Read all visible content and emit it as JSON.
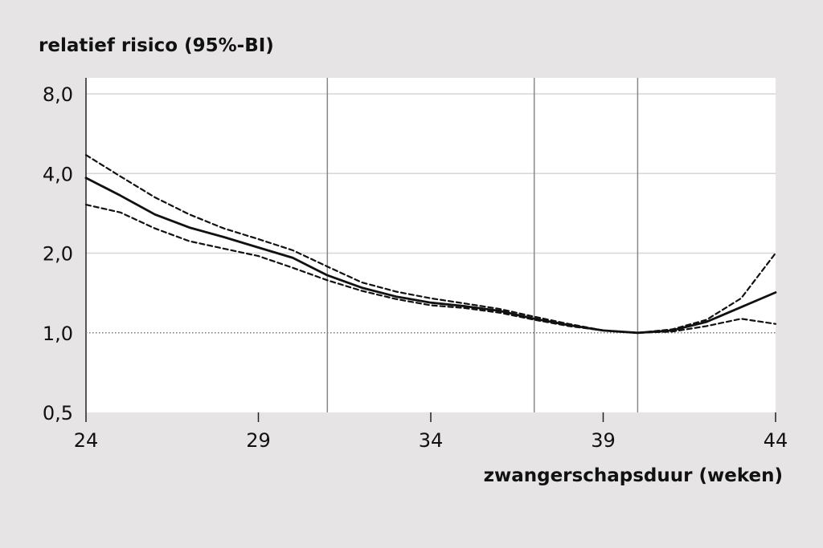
{
  "chart_data": {
    "type": "line",
    "ylabel": "relatief risico (95%-BI)",
    "xlabel": "zwangerschapsduur (weken)",
    "y_scale": "log2",
    "ylim": [
      0.5,
      9.2
    ],
    "xlim": [
      24,
      44
    ],
    "x_ticks": [
      24,
      29,
      34,
      39,
      44
    ],
    "y_ticks": [
      {
        "value": 0.5,
        "label": "0,5"
      },
      {
        "value": 1.0,
        "label": "1,0"
      },
      {
        "value": 2.0,
        "label": "2,0"
      },
      {
        "value": 4.0,
        "label": "4,0"
      },
      {
        "value": 8.0,
        "label": "8,0"
      }
    ],
    "reference_line": {
      "y": 1.0,
      "style": "dotted"
    },
    "vertical_lines_x": [
      31,
      37,
      40
    ],
    "series": [
      {
        "role": "estimate",
        "style": "solid",
        "x": [
          24,
          25,
          26,
          27,
          28,
          29,
          30,
          31,
          32,
          33,
          34,
          35,
          36,
          37,
          38,
          39,
          40,
          41,
          42,
          43,
          44
        ],
        "y": [
          3.85,
          3.3,
          2.8,
          2.5,
          2.3,
          2.1,
          1.92,
          1.65,
          1.48,
          1.37,
          1.3,
          1.26,
          1.21,
          1.13,
          1.07,
          1.02,
          1.0,
          1.02,
          1.1,
          1.25,
          1.42
        ]
      },
      {
        "role": "upper_ci",
        "style": "dashed",
        "x": [
          24,
          25,
          26,
          27,
          28,
          29,
          30,
          31,
          32,
          33,
          34,
          35,
          36,
          37,
          38,
          39,
          40,
          41,
          42,
          43,
          44
        ],
        "y": [
          4.7,
          3.9,
          3.25,
          2.8,
          2.48,
          2.26,
          2.05,
          1.78,
          1.55,
          1.43,
          1.35,
          1.29,
          1.23,
          1.15,
          1.08,
          1.02,
          1.0,
          1.03,
          1.12,
          1.35,
          2.0
        ]
      },
      {
        "role": "lower_ci",
        "style": "dashed",
        "x": [
          24,
          25,
          26,
          27,
          28,
          29,
          30,
          31,
          32,
          33,
          34,
          35,
          36,
          37,
          38,
          39,
          40,
          41,
          42,
          43,
          44
        ],
        "y": [
          3.05,
          2.85,
          2.48,
          2.22,
          2.08,
          1.95,
          1.76,
          1.58,
          1.44,
          1.34,
          1.27,
          1.24,
          1.19,
          1.12,
          1.06,
          1.02,
          1.0,
          1.01,
          1.06,
          1.13,
          1.08
        ]
      }
    ]
  }
}
